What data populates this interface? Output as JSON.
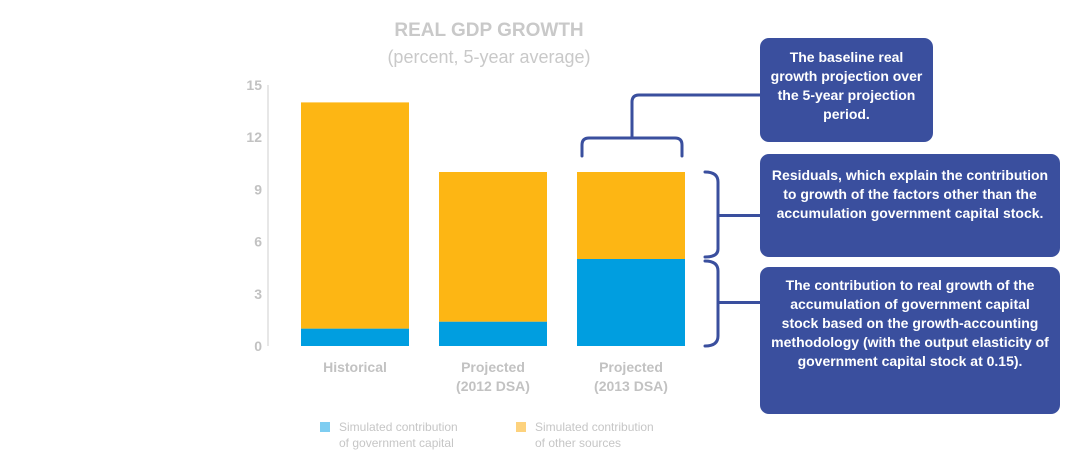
{
  "chart_data": {
    "type": "bar",
    "stacked": true,
    "title": "REAL GDP GROWTH",
    "subtitle": "(percent, 5-year average)",
    "categories": [
      [
        "Historical"
      ],
      [
        "Projected",
        "(2012 DSA)"
      ],
      [
        "Projected",
        "(2013 DSA)"
      ]
    ],
    "ylim": [
      0,
      15
    ],
    "yticks": [
      "0",
      "3",
      "6",
      "9",
      "12",
      "15"
    ],
    "series": [
      {
        "name": "Simulated contribution of government capital",
        "color": "#009ee0",
        "values": [
          1.0,
          1.4,
          5.0
        ]
      },
      {
        "name": "Simulated contribution of other sources",
        "color": "#fdb614",
        "values": [
          13.0,
          8.6,
          5.0
        ]
      }
    ],
    "legend": [
      {
        "lines": [
          "Simulated contribution",
          "of government capital"
        ],
        "color": "#7ecdf1"
      },
      {
        "lines": [
          "Simulated contribution",
          "of other sources"
        ],
        "color": "#fdd27d"
      }
    ],
    "legend_position": "bottom",
    "grid": false
  },
  "annotations": {
    "baseline": "The baseline real growth projection over the 5-year projection period.",
    "residuals": "Residuals, which explain the contribution to growth of the factors other than the accumulation government capital stock.",
    "capital": "The contribution to real growth of the accumulation of government capital stock based on the growth-accounting methodology (with the output elasticity of government capital stock at 0.15)."
  },
  "colors": {
    "callout_bg": "#3a4f9e",
    "bracket": "#3a4f9e",
    "axis": "#cfcfcf"
  }
}
